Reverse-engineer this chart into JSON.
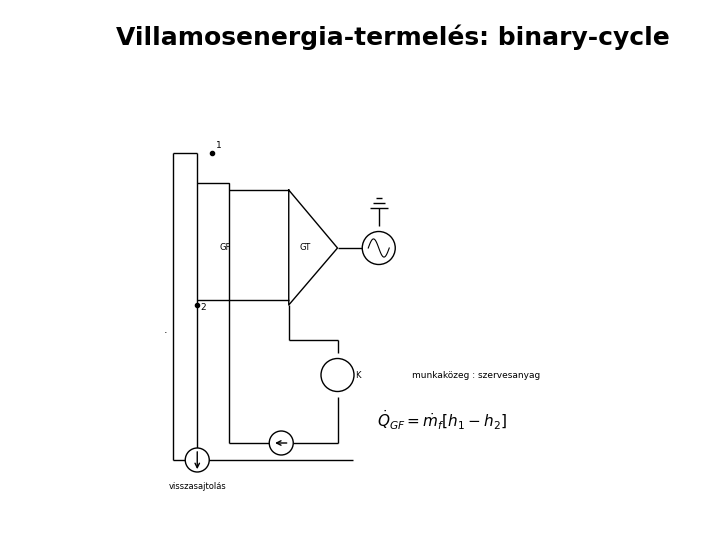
{
  "title": "Villamosenergia-termelés: binary-cycle",
  "title_fontsize": 18,
  "bg_color": "#ffffff",
  "line_color": "#000000",
  "lw": 1.0,
  "label_1": "1",
  "label_2": "2",
  "label_GF": "GF",
  "label_GT": "GT",
  "label_K": "K",
  "label_visszasajt": "visszasajtolás",
  "label_munka": "munkaközeg : szervesanyag",
  "formula": "$\\dot{Q}_{GF} = \\dot{m}_f[h_1 - h_2]$",
  "fig_width": 7.2,
  "fig_height": 5.4,
  "dpi": 100
}
